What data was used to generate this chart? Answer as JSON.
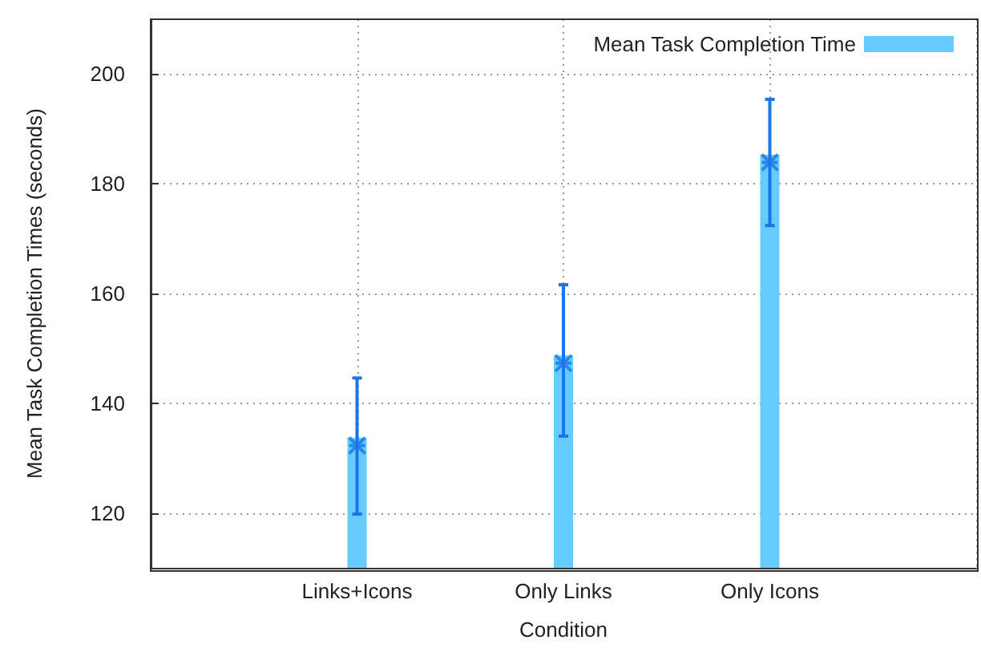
{
  "chart_data": {
    "type": "bar",
    "ylabel": "Mean Task Completion Times (seconds)",
    "xlabel": "Condition",
    "categories": [
      null,
      "Links+Icons",
      "Only Links",
      "Only Icons",
      null
    ],
    "series": [
      {
        "name": "Mean Task Completion Time",
        "color": "#66ccff",
        "values": [
          null,
          133.7,
          148.7,
          185.3,
          null
        ]
      },
      {
        "type": "scatter",
        "color": "#1a75e8",
        "values": [
          null,
          132.3,
          147.3,
          183.9,
          null
        ],
        "errors": [
          null,
          [
            119.8,
            144.6
          ],
          [
            134.0,
            161.6
          ],
          [
            172.4,
            195.4
          ],
          null
        ]
      }
    ],
    "ylim": [
      110,
      210
    ],
    "yticks": [
      120,
      140,
      160,
      180,
      200
    ],
    "grid": true,
    "legend": "top right",
    "marker": "cross"
  }
}
